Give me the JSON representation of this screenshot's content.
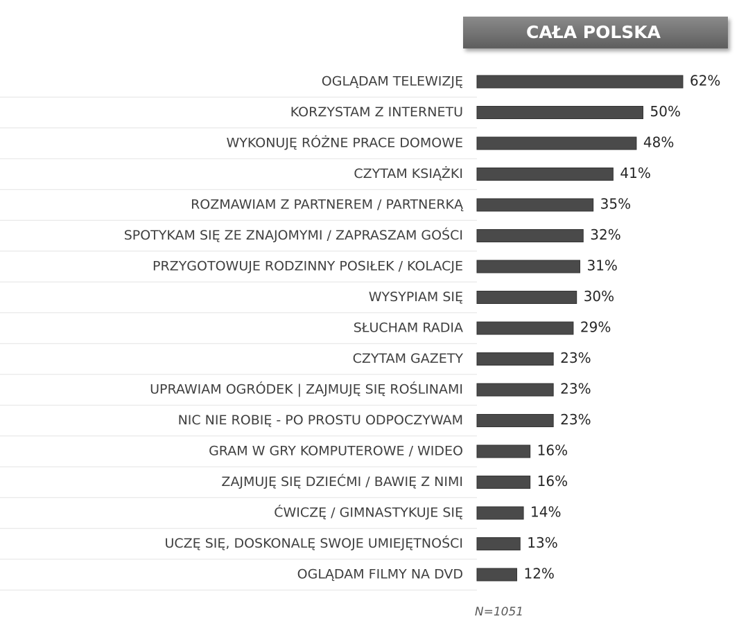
{
  "chart_data": {
    "type": "bar",
    "orientation": "horizontal",
    "title": "CAŁA POLSKA",
    "note": "N=1051",
    "categories": [
      "OGLĄDAM TELEWIZJĘ",
      "KORZYSTAM Z INTERNETU",
      "WYKONUJĘ RÓŻNE PRACE DOMOWE",
      "CZYTAM KSIĄŻKI",
      "ROZMAWIAM Z PARTNEREM / PARTNERKĄ",
      "SPOTYKAM SIĘ ZE ZNAJOMYMI / ZAPRASZAM GOŚCI",
      "PRZYGOTOWUJE RODZINNY POSIŁEK / KOLACJE",
      "WYSYPIAM SIĘ",
      "SŁUCHAM RADIA",
      "CZYTAM GAZETY",
      "UPRAWIAM OGRÓDEK | ZAJMUJĘ SIĘ ROŚLINAMI",
      "NIC NIE ROBIĘ - PO PROSTU ODPOCZYWAM",
      "GRAM W GRY KOMPUTEROWE / WIDEO",
      "ZAJMUJĘ SIĘ DZIEĆMI / BAWIĘ Z NIMI",
      "ĆWICZĘ / GIMNASTYKUJE SIĘ",
      "UCZĘ SIĘ, DOSKONALĘ SWOJE UMIEJĘTNOŚCI",
      "OGLĄDAM FILMY NA DVD"
    ],
    "values": [
      62,
      50,
      48,
      41,
      35,
      32,
      31,
      30,
      29,
      23,
      23,
      23,
      16,
      16,
      14,
      13,
      12
    ],
    "value_labels": [
      "62%",
      "50%",
      "48%",
      "41%",
      "35%",
      "32%",
      "31%",
      "30%",
      "29%",
      "23%",
      "23%",
      "23%",
      "16%",
      "16%",
      "14%",
      "13%",
      "12%"
    ],
    "color": "#4a4a4a"
  }
}
